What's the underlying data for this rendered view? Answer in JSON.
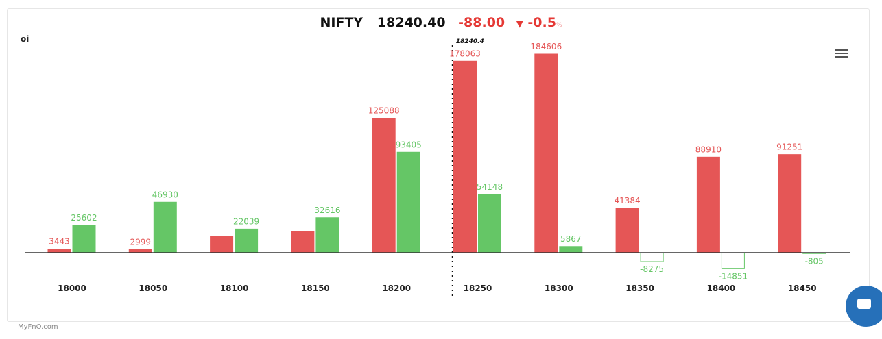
{
  "header": {
    "symbol": "NIFTY",
    "price": "18240.40",
    "change": "-88.00",
    "change_pct": "-0.5",
    "pct_sign": "%",
    "direction_icon": "triangle-down"
  },
  "brand": "MyFnO.com",
  "chart_data": {
    "type": "bar",
    "ylabel": "oi",
    "categories": [
      "18000",
      "18050",
      "18100",
      "18150",
      "18200",
      "18250",
      "18300",
      "18350",
      "18400",
      "18450"
    ],
    "series": [
      {
        "color": "#e55656",
        "values": [
          3443,
          2999,
          15300,
          19700,
          125088,
          178063,
          184606,
          41384,
          88910,
          91251
        ],
        "labels": [
          "3443",
          "2999",
          null,
          null,
          "125088",
          "178063",
          "184606",
          "41384",
          "88910",
          "91251"
        ]
      },
      {
        "color": "#65c666",
        "values": [
          25602,
          46930,
          22039,
          32616,
          93405,
          54148,
          5867,
          -8275,
          -14851,
          -805
        ],
        "labels": [
          "25602",
          "46930",
          "22039",
          "32616",
          "93405",
          "54148",
          "5867",
          "-8275",
          "-14851",
          "-805"
        ]
      }
    ],
    "spot_line": {
      "value": 18240.4,
      "label": "18240.4"
    },
    "grid": false,
    "legend": "none"
  },
  "colors": {
    "negative": "#e53935",
    "call": "#e55656",
    "put": "#65c666",
    "chat": "#2670b9"
  }
}
